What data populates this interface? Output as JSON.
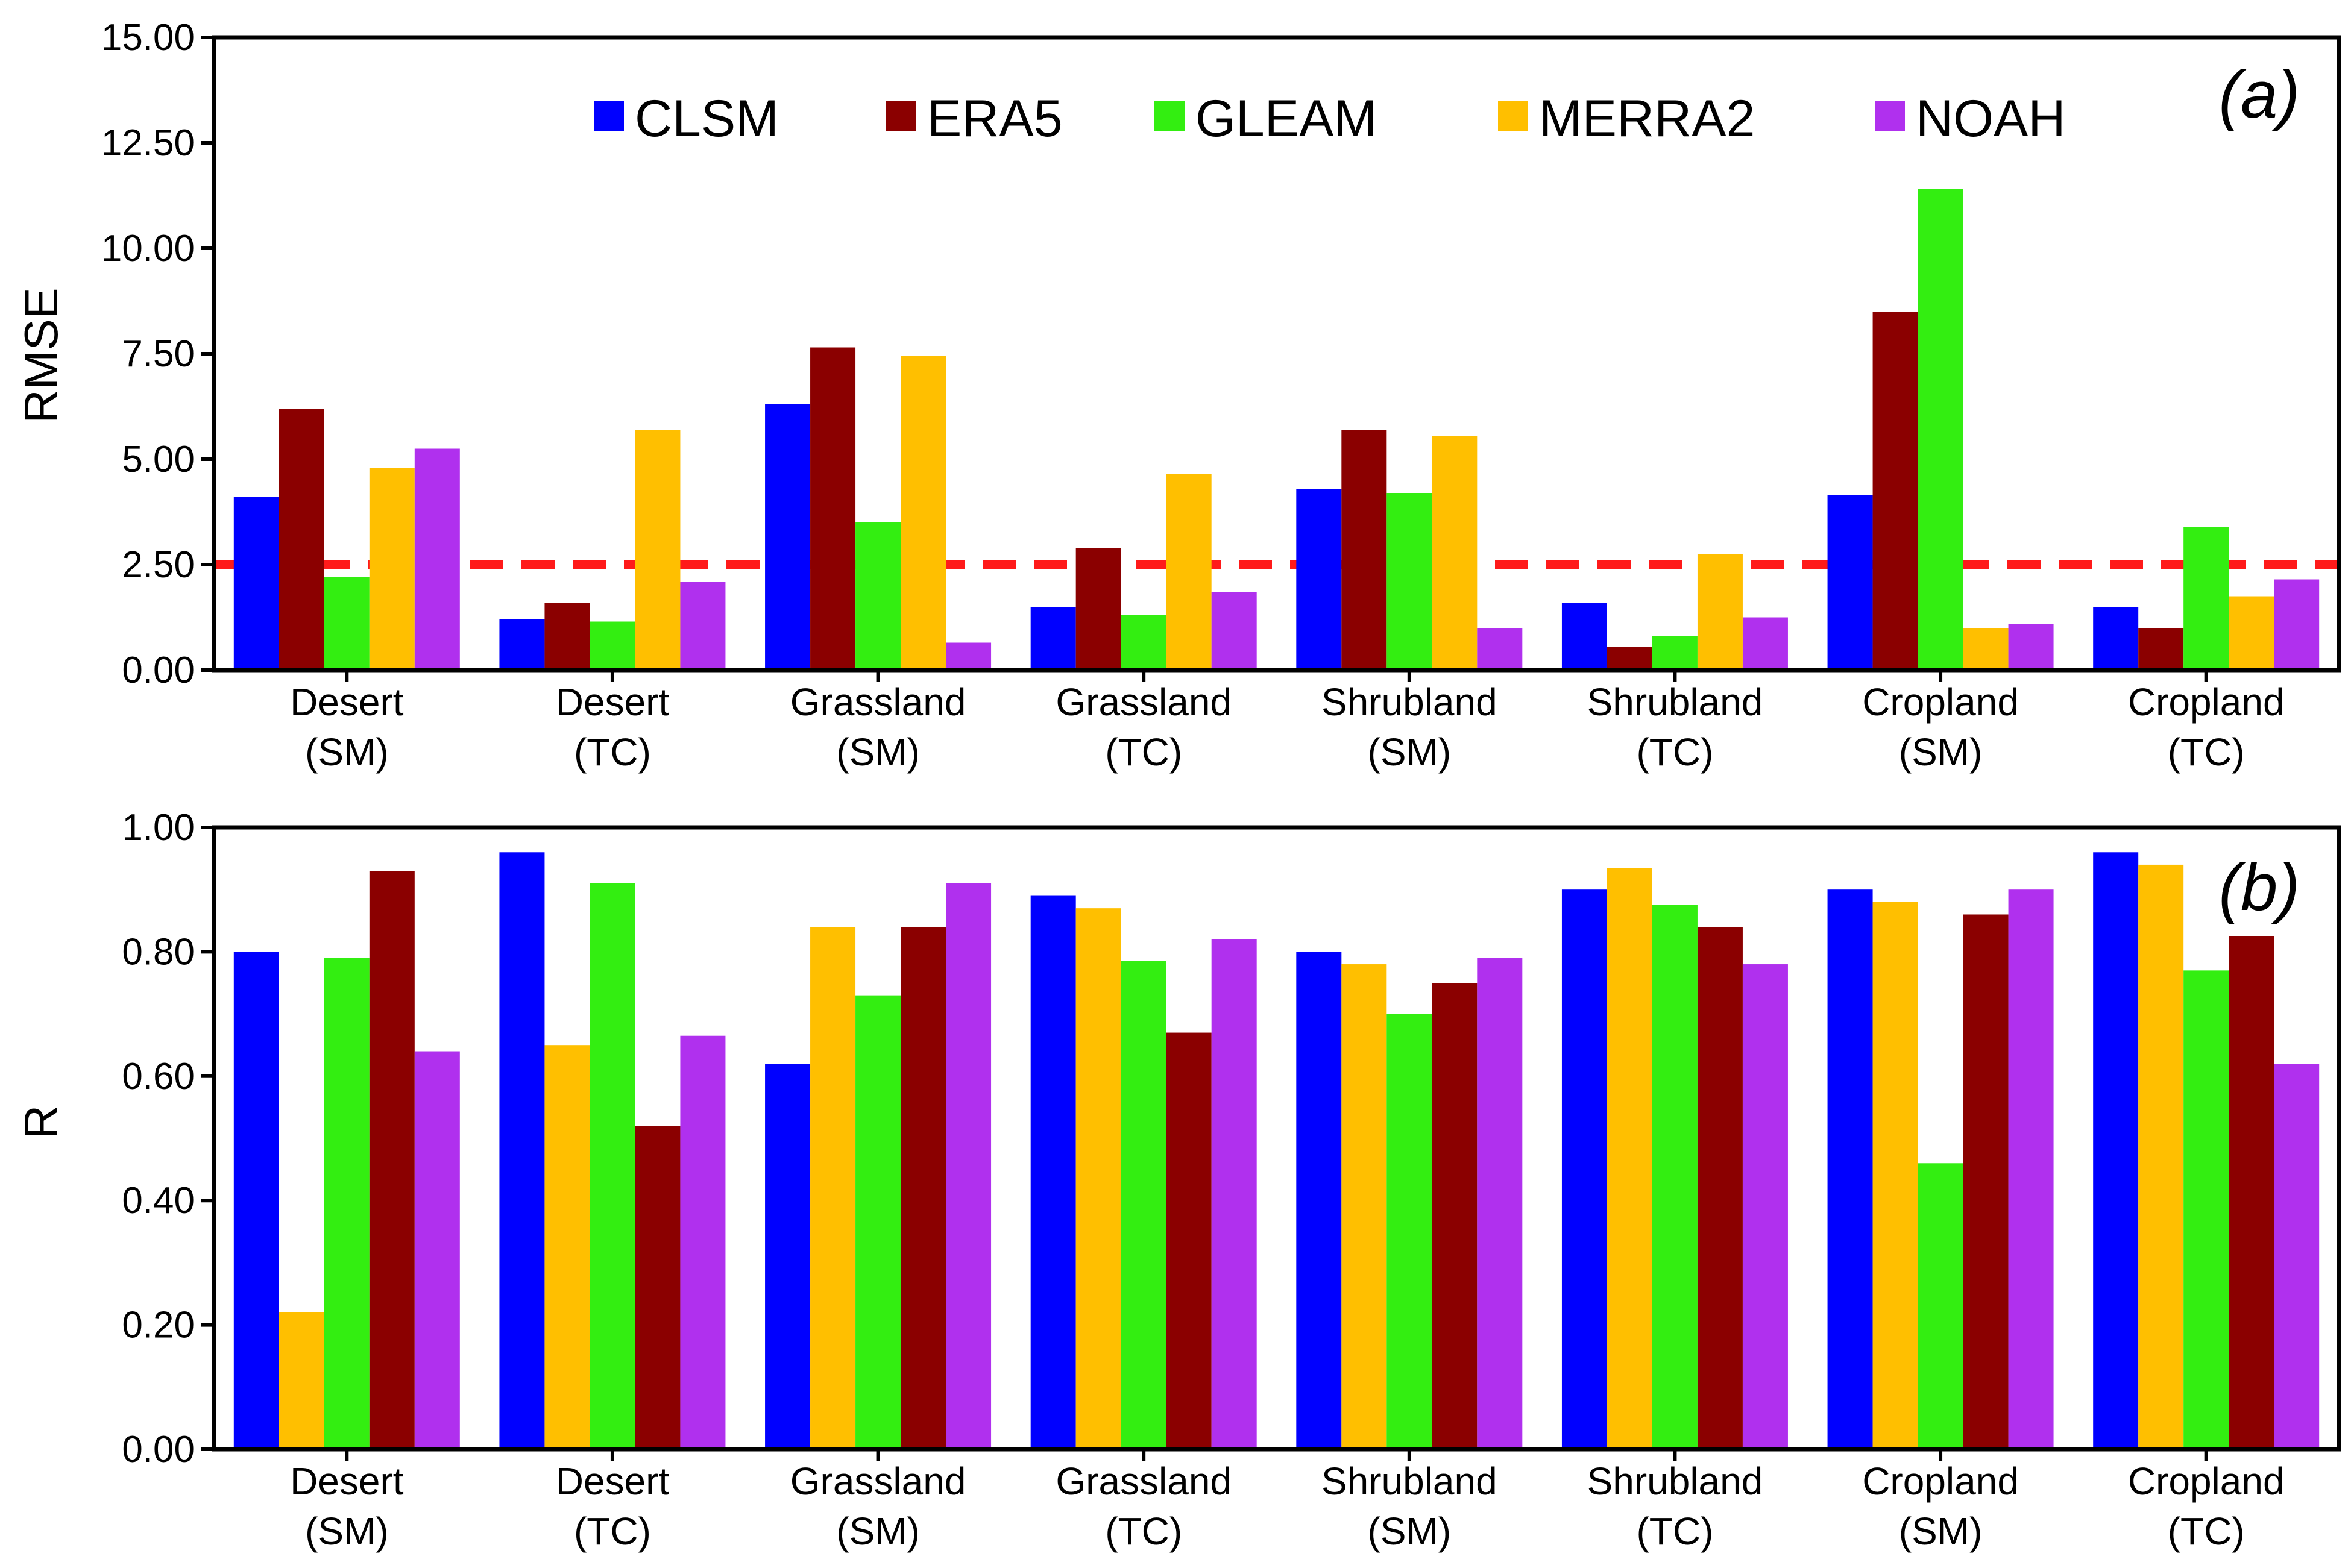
{
  "chart_data": [
    {
      "type": "bar",
      "panel_label": "(a)",
      "ylabel": "RMSE",
      "ylim": [
        0,
        15
      ],
      "yticks": [
        "0.00",
        "2.50",
        "5.00",
        "7.50",
        "10.00",
        "12.50",
        "15.00"
      ],
      "categories": [
        [
          "Desert",
          "(SM)"
        ],
        [
          "Desert",
          "(TC)"
        ],
        [
          "Grassland",
          "(SM)"
        ],
        [
          "Grassland",
          "(TC)"
        ],
        [
          "Shrubland",
          "(SM)"
        ],
        [
          "Shrubland",
          "(TC)"
        ],
        [
          "Cropland",
          "(SM)"
        ],
        [
          "Cropland",
          "(TC)"
        ]
      ],
      "reference_line": {
        "y": 2.5,
        "color": "#ff1a1a",
        "style": "dashed"
      },
      "series": [
        {
          "name": "CLSM",
          "color": "#0000ff",
          "values": [
            4.1,
            1.2,
            6.3,
            1.5,
            4.3,
            1.6,
            4.15,
            1.5
          ]
        },
        {
          "name": "ERA5",
          "color": "#8b0000",
          "values": [
            6.2,
            1.6,
            7.65,
            2.9,
            5.7,
            0.55,
            8.5,
            1.0
          ]
        },
        {
          "name": "GLEAM",
          "color": "#33ee11",
          "values": [
            2.2,
            1.15,
            3.5,
            1.3,
            4.2,
            0.8,
            11.4,
            3.4
          ]
        },
        {
          "name": "MERRA2",
          "color": "#ffbf00",
          "values": [
            4.8,
            5.7,
            7.45,
            4.65,
            5.55,
            2.75,
            1.0,
            1.75
          ]
        },
        {
          "name": "NOAH",
          "color": "#b030ee",
          "values": [
            5.25,
            2.1,
            0.65,
            1.85,
            1.0,
            1.25,
            1.1,
            2.15
          ]
        }
      ],
      "legend": {
        "placement": "top",
        "entries": [
          {
            "name": "CLSM",
            "color": "#0000ff"
          },
          {
            "name": "ERA5",
            "color": "#8b0000"
          },
          {
            "name": "GLEAM",
            "color": "#33ee11"
          },
          {
            "name": "MERRA2",
            "color": "#ffbf00"
          },
          {
            "name": "NOAH",
            "color": "#b030ee"
          }
        ]
      }
    },
    {
      "type": "bar",
      "panel_label": "(b)",
      "ylabel": "R",
      "ylim": [
        0,
        1
      ],
      "yticks": [
        "0.00",
        "0.20",
        "0.40",
        "0.60",
        "0.80",
        "1.00"
      ],
      "categories": [
        [
          "Desert",
          "(SM)"
        ],
        [
          "Desert",
          "(TC)"
        ],
        [
          "Grassland",
          "(SM)"
        ],
        [
          "Grassland",
          "(TC)"
        ],
        [
          "Shrubland",
          "(SM)"
        ],
        [
          "Shrubland",
          "(TC)"
        ],
        [
          "Cropland",
          "(SM)"
        ],
        [
          "Cropland",
          "(TC)"
        ]
      ],
      "bar_order_note": "colors per bar follow the drawn order; order varies by group",
      "groups": [
        {
          "colors": [
            "#0000ff",
            "#ffbf00",
            "#33ee11",
            "#8b0000",
            "#b030ee"
          ],
          "values": [
            0.8,
            0.22,
            0.79,
            0.93,
            0.64
          ]
        },
        {
          "colors": [
            "#0000ff",
            "#ffbf00",
            "#33ee11",
            "#8b0000",
            "#b030ee"
          ],
          "values": [
            0.96,
            0.65,
            0.91,
            0.52,
            0.665
          ]
        },
        {
          "colors": [
            "#0000ff",
            "#ffbf00",
            "#33ee11",
            "#8b0000",
            "#b030ee"
          ],
          "values": [
            0.62,
            0.84,
            0.73,
            0.84,
            0.91
          ]
        },
        {
          "colors": [
            "#0000ff",
            "#ffbf00",
            "#33ee11",
            "#8b0000",
            "#b030ee"
          ],
          "values": [
            0.89,
            0.87,
            0.785,
            0.67,
            0.82
          ]
        },
        {
          "colors": [
            "#0000ff",
            "#ffbf00",
            "#33ee11",
            "#8b0000",
            "#b030ee"
          ],
          "values": [
            0.8,
            0.78,
            0.7,
            0.75,
            0.79
          ]
        },
        {
          "colors": [
            "#0000ff",
            "#ffbf00",
            "#33ee11",
            "#8b0000",
            "#b030ee"
          ],
          "values": [
            0.9,
            0.935,
            0.875,
            0.84,
            0.78
          ]
        },
        {
          "colors": [
            "#0000ff",
            "#ffbf00",
            "#33ee11",
            "#8b0000",
            "#b030ee"
          ],
          "values": [
            0.9,
            0.88,
            0.46,
            0.86,
            0.9
          ]
        },
        {
          "colors": [
            "#0000ff",
            "#ffbf00",
            "#33ee11",
            "#8b0000",
            "#b030ee"
          ],
          "values": [
            0.96,
            0.94,
            0.77,
            0.825,
            0.62
          ]
        }
      ]
    }
  ]
}
